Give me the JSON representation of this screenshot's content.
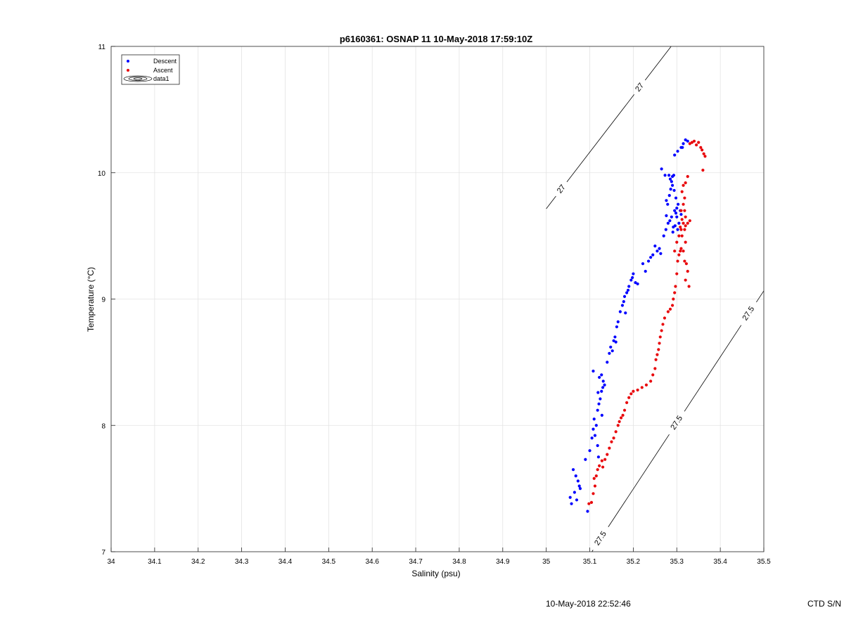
{
  "chart_data": {
    "type": "scatter",
    "title": "p6160361: OSNAP 11 10-May-2018 17:59:10Z",
    "xlabel": "Salinity (psu)",
    "ylabel": "Temperature (°C)",
    "xlim": [
      34,
      35.5
    ],
    "ylim": [
      7,
      11
    ],
    "x_ticks": [
      "34",
      "34.1",
      "34.2",
      "34.3",
      "34.4",
      "34.5",
      "34.6",
      "34.7",
      "34.8",
      "34.9",
      "35",
      "35.1",
      "35.2",
      "35.3",
      "35.4",
      "35.5"
    ],
    "y_ticks": [
      "7",
      "8",
      "9",
      "10",
      "11"
    ],
    "grid": true,
    "legend_position": "top-left",
    "legend": [
      "Descent",
      "Ascent",
      "data1"
    ],
    "series": [
      {
        "name": "Descent",
        "color": "#0000ff",
        "points": [
          [
            35.055,
            7.43
          ],
          [
            35.058,
            7.38
          ],
          [
            35.062,
            7.65
          ],
          [
            35.065,
            7.47
          ],
          [
            35.068,
            7.6
          ],
          [
            35.07,
            7.41
          ],
          [
            35.073,
            7.56
          ],
          [
            35.076,
            7.52
          ],
          [
            35.078,
            7.5
          ],
          [
            35.09,
            7.73
          ],
          [
            35.095,
            7.32
          ],
          [
            35.1,
            7.8
          ],
          [
            35.105,
            7.9
          ],
          [
            35.108,
            7.97
          ],
          [
            35.11,
            8.05
          ],
          [
            35.112,
            7.92
          ],
          [
            35.115,
            8.0
          ],
          [
            35.118,
            7.84
          ],
          [
            35.12,
            7.75
          ],
          [
            35.118,
            8.12
          ],
          [
            35.121,
            8.17
          ],
          [
            35.124,
            8.21
          ],
          [
            35.127,
            8.27
          ],
          [
            35.13,
            8.3
          ],
          [
            35.119,
            8.26
          ],
          [
            35.128,
            8.08
          ],
          [
            35.131,
            8.35
          ],
          [
            35.134,
            8.32
          ],
          [
            35.127,
            8.4
          ],
          [
            35.122,
            8.38
          ],
          [
            35.108,
            8.43
          ],
          [
            35.14,
            8.5
          ],
          [
            35.145,
            8.57
          ],
          [
            35.148,
            8.62
          ],
          [
            35.152,
            8.59
          ],
          [
            35.155,
            8.67
          ],
          [
            35.158,
            8.7
          ],
          [
            35.16,
            8.66
          ],
          [
            35.162,
            8.78
          ],
          [
            35.165,
            8.82
          ],
          [
            35.17,
            8.9
          ],
          [
            35.175,
            8.95
          ],
          [
            35.178,
            8.98
          ],
          [
            35.18,
            9.02
          ],
          [
            35.182,
            8.89
          ],
          [
            35.185,
            9.05
          ],
          [
            35.188,
            9.07
          ],
          [
            35.19,
            9.1
          ],
          [
            35.195,
            9.15
          ],
          [
            35.198,
            9.17
          ],
          [
            35.2,
            9.2
          ],
          [
            35.205,
            9.13
          ],
          [
            35.21,
            9.12
          ],
          [
            35.222,
            9.28
          ],
          [
            35.228,
            9.22
          ],
          [
            35.235,
            9.3
          ],
          [
            35.24,
            9.33
          ],
          [
            35.245,
            9.35
          ],
          [
            35.25,
            9.42
          ],
          [
            35.255,
            9.38
          ],
          [
            35.26,
            9.4
          ],
          [
            35.263,
            9.36
          ],
          [
            35.27,
            9.5
          ],
          [
            35.275,
            9.55
          ],
          [
            35.28,
            9.6
          ],
          [
            35.284,
            9.62
          ],
          [
            35.288,
            9.65
          ],
          [
            35.292,
            9.57
          ],
          [
            35.295,
            9.7
          ],
          [
            35.298,
            9.68
          ],
          [
            35.3,
            9.72
          ],
          [
            35.303,
            9.75
          ],
          [
            35.296,
            9.58
          ],
          [
            35.291,
            9.53
          ],
          [
            35.305,
            9.6
          ],
          [
            35.308,
            9.7
          ],
          [
            35.31,
            9.67
          ],
          [
            35.302,
            9.55
          ],
          [
            35.3,
            9.65
          ],
          [
            35.298,
            9.8
          ],
          [
            35.294,
            9.86
          ],
          [
            35.29,
            9.9
          ],
          [
            35.285,
            9.95
          ],
          [
            35.282,
            9.98
          ],
          [
            35.288,
            9.93
          ],
          [
            35.279,
            9.75
          ],
          [
            35.283,
            9.82
          ],
          [
            35.276,
            9.78
          ],
          [
            35.286,
            9.87
          ],
          [
            35.273,
            9.98
          ],
          [
            35.265,
            10.03
          ],
          [
            35.276,
            9.66
          ],
          [
            35.29,
            9.97
          ],
          [
            35.293,
            9.98
          ],
          [
            35.295,
            10.14
          ],
          [
            35.302,
            10.17
          ],
          [
            35.31,
            10.2
          ],
          [
            35.315,
            10.23
          ],
          [
            35.32,
            10.26
          ],
          [
            35.325,
            10.25
          ],
          [
            35.313,
            10.2
          ]
        ]
      },
      {
        "name": "Ascent",
        "color": "#e8070b",
        "points": [
          [
            35.098,
            7.38
          ],
          [
            35.104,
            7.39
          ],
          [
            35.108,
            7.46
          ],
          [
            35.112,
            7.52
          ],
          [
            35.11,
            7.58
          ],
          [
            35.115,
            7.6
          ],
          [
            35.118,
            7.65
          ],
          [
            35.122,
            7.68
          ],
          [
            35.128,
            7.72
          ],
          [
            35.13,
            7.67
          ],
          [
            35.135,
            7.73
          ],
          [
            35.14,
            7.77
          ],
          [
            35.145,
            7.82
          ],
          [
            35.15,
            7.87
          ],
          [
            35.155,
            7.9
          ],
          [
            35.16,
            7.95
          ],
          [
            35.165,
            8.0
          ],
          [
            35.168,
            8.03
          ],
          [
            35.172,
            8.06
          ],
          [
            35.176,
            8.08
          ],
          [
            35.18,
            8.12
          ],
          [
            35.185,
            8.18
          ],
          [
            35.19,
            8.22
          ],
          [
            35.195,
            8.25
          ],
          [
            35.2,
            8.27
          ],
          [
            35.21,
            8.28
          ],
          [
            35.22,
            8.3
          ],
          [
            35.23,
            8.32
          ],
          [
            35.24,
            8.35
          ],
          [
            35.245,
            8.4
          ],
          [
            35.25,
            8.45
          ],
          [
            35.252,
            8.52
          ],
          [
            35.255,
            8.56
          ],
          [
            35.258,
            8.6
          ],
          [
            35.26,
            8.65
          ],
          [
            35.262,
            8.7
          ],
          [
            35.265,
            8.75
          ],
          [
            35.268,
            8.8
          ],
          [
            35.272,
            8.85
          ],
          [
            35.28,
            8.9
          ],
          [
            35.285,
            8.92
          ],
          [
            35.29,
            8.95
          ],
          [
            35.292,
            9.0
          ],
          [
            35.295,
            9.05
          ],
          [
            35.297,
            9.1
          ],
          [
            35.3,
            9.2
          ],
          [
            35.302,
            9.3
          ],
          [
            35.305,
            9.35
          ],
          [
            35.308,
            9.38
          ],
          [
            35.31,
            9.4
          ],
          [
            35.3,
            9.45
          ],
          [
            35.295,
            9.38
          ],
          [
            35.305,
            9.5
          ],
          [
            35.31,
            9.55
          ],
          [
            35.315,
            9.6
          ],
          [
            35.312,
            9.63
          ],
          [
            35.308,
            9.57
          ],
          [
            35.318,
            9.55
          ],
          [
            35.312,
            9.5
          ],
          [
            35.32,
            9.58
          ],
          [
            35.325,
            9.6
          ],
          [
            35.33,
            9.62
          ],
          [
            35.32,
            9.45
          ],
          [
            35.315,
            9.38
          ],
          [
            35.318,
            9.3
          ],
          [
            35.322,
            9.28
          ],
          [
            35.325,
            9.22
          ],
          [
            35.32,
            9.15
          ],
          [
            35.328,
            9.1
          ],
          [
            35.31,
            9.7
          ],
          [
            35.315,
            9.75
          ],
          [
            35.318,
            9.8
          ],
          [
            35.312,
            9.85
          ],
          [
            35.315,
            9.9
          ],
          [
            35.32,
            9.92
          ],
          [
            35.318,
            9.7
          ],
          [
            35.32,
            9.65
          ],
          [
            35.325,
            9.97
          ],
          [
            35.33,
            10.23
          ],
          [
            35.335,
            10.24
          ],
          [
            35.34,
            10.25
          ],
          [
            35.345,
            10.22
          ],
          [
            35.35,
            10.24
          ],
          [
            35.355,
            10.2
          ],
          [
            35.358,
            10.18
          ],
          [
            35.362,
            10.15
          ],
          [
            35.36,
            10.02
          ],
          [
            35.365,
            10.13
          ]
        ]
      }
    ],
    "contours": [
      {
        "level": "27",
        "label": "27",
        "points": [
          [
            35.0,
            9.715
          ],
          [
            35.287,
            11.0
          ]
        ],
        "label_positions": [
          [
            35.035,
            9.87
          ],
          [
            35.215,
            10.675
          ]
        ]
      },
      {
        "level": "27.5",
        "label": "27.5",
        "points": [
          [
            35.105,
            7.0
          ],
          [
            35.5,
            9.065
          ]
        ],
        "label_positions": [
          [
            35.125,
            7.105
          ],
          [
            35.3,
            8.02
          ],
          [
            35.465,
            8.885
          ]
        ]
      }
    ]
  },
  "legend_data1_label": "data1",
  "footer": {
    "timestamp": "10-May-2018 22:52:46",
    "ctd_label": "CTD S/N"
  }
}
